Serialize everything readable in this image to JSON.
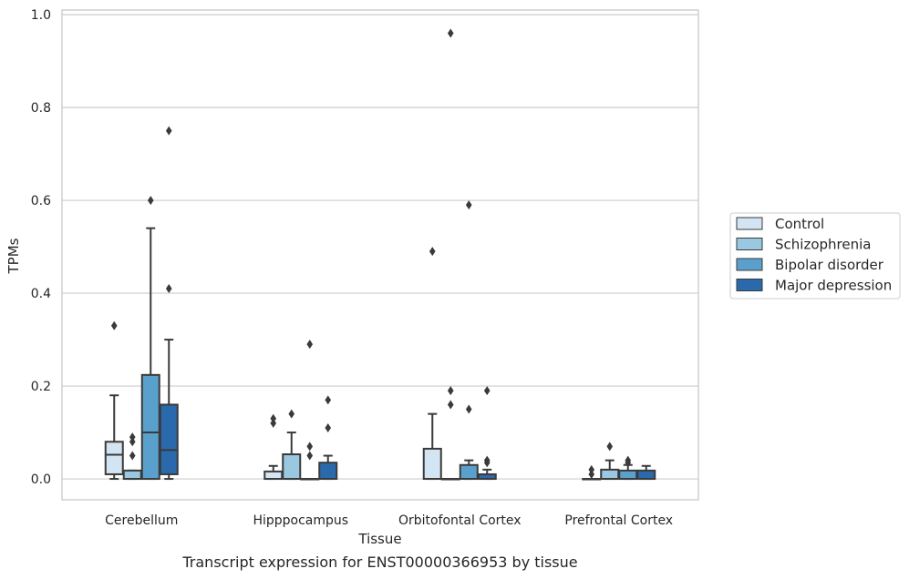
{
  "chart_data": {
    "type": "box",
    "title": "",
    "caption": "Transcript expression for ENST00000366953 by tissue",
    "xlabel": "Tissue",
    "ylabel": "TPMs",
    "ylim": [
      -0.045,
      1.01
    ],
    "yticks": [
      "0.0",
      "0.2",
      "0.4",
      "0.6",
      "0.8",
      "1.0"
    ],
    "ytick_values": [
      0.0,
      0.2,
      0.4,
      0.6,
      0.8,
      1.0
    ],
    "grid": "horizontal",
    "legend_position": "right",
    "categories": [
      "Cerebellum",
      "Hipppocampus",
      "Orbitofontal Cortex",
      "Prefrontal Cortex"
    ],
    "series": [
      {
        "name": "Control",
        "color": "#d3e4f3",
        "boxes": [
          {
            "whislo": 0.0,
            "q1": 0.01,
            "med": 0.052,
            "q3": 0.08,
            "whishi": 0.18,
            "fliers": [
              0.33
            ]
          },
          {
            "whislo": 0.0,
            "q1": 0.0,
            "med": 0.0,
            "q3": 0.016,
            "whishi": 0.028,
            "fliers": [
              0.12,
              0.13
            ]
          },
          {
            "whislo": 0.0,
            "q1": 0.0,
            "med": 0.0,
            "q3": 0.065,
            "whishi": 0.14,
            "fliers": [
              0.49
            ]
          },
          {
            "whislo": 0.0,
            "q1": 0.0,
            "med": 0.0,
            "q3": 0.0,
            "whishi": 0.0,
            "fliers": [
              0.01,
              0.02
            ]
          }
        ]
      },
      {
        "name": "Schizophrenia",
        "color": "#9ac8e0",
        "boxes": [
          {
            "whislo": 0.0,
            "q1": 0.0,
            "med": 0.0,
            "q3": 0.018,
            "whishi": 0.018,
            "fliers": [
              0.05,
              0.08,
              0.09
            ]
          },
          {
            "whislo": 0.0,
            "q1": 0.0,
            "med": 0.0,
            "q3": 0.053,
            "whishi": 0.1,
            "fliers": [
              0.14
            ]
          },
          {
            "whislo": 0.0,
            "q1": 0.0,
            "med": 0.0,
            "q3": 0.0,
            "whishi": 0.0,
            "fliers": [
              0.16,
              0.19,
              0.96
            ]
          },
          {
            "whislo": 0.0,
            "q1": 0.0,
            "med": 0.0,
            "q3": 0.02,
            "whishi": 0.04,
            "fliers": [
              0.07
            ]
          }
        ]
      },
      {
        "name": "Bipolar disorder",
        "color": "#5aa0cd",
        "boxes": [
          {
            "whislo": 0.0,
            "q1": 0.0,
            "med": 0.1,
            "q3": 0.224,
            "whishi": 0.54,
            "fliers": [
              0.6
            ]
          },
          {
            "whislo": 0.0,
            "q1": 0.0,
            "med": 0.0,
            "q3": 0.0,
            "whishi": 0.0,
            "fliers": [
              0.05,
              0.07,
              0.29
            ]
          },
          {
            "whislo": 0.0,
            "q1": 0.0,
            "med": 0.0,
            "q3": 0.03,
            "whishi": 0.04,
            "fliers": [
              0.15,
              0.59
            ]
          },
          {
            "whislo": 0.0,
            "q1": 0.0,
            "med": 0.0,
            "q3": 0.018,
            "whishi": 0.03,
            "fliers": [
              0.035,
              0.04
            ]
          }
        ]
      },
      {
        "name": "Major depression",
        "color": "#2a6aac",
        "boxes": [
          {
            "whislo": 0.0,
            "q1": 0.01,
            "med": 0.062,
            "q3": 0.16,
            "whishi": 0.3,
            "fliers": [
              0.41,
              0.75
            ]
          },
          {
            "whislo": 0.0,
            "q1": 0.0,
            "med": 0.0,
            "q3": 0.035,
            "whishi": 0.05,
            "fliers": [
              0.11,
              0.17
            ]
          },
          {
            "whislo": 0.0,
            "q1": 0.0,
            "med": 0.0,
            "q3": 0.01,
            "whishi": 0.02,
            "fliers": [
              0.035,
              0.04,
              0.19
            ]
          },
          {
            "whislo": 0.0,
            "q1": 0.0,
            "med": 0.0,
            "q3": 0.018,
            "whishi": 0.028,
            "fliers": []
          }
        ]
      }
    ]
  }
}
